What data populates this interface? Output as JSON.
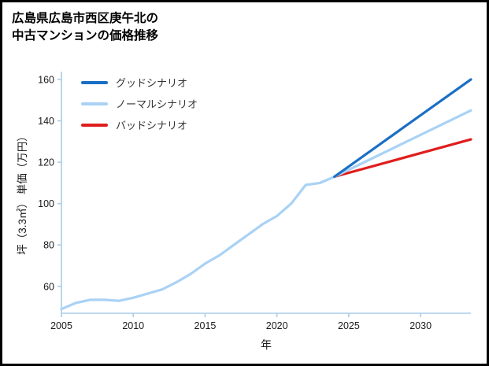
{
  "page": {
    "title_lines": [
      "広島県広島市西区庚午北の",
      "中古マンションの価格推移"
    ]
  },
  "chart_data": {
    "type": "line",
    "title": "広島県広島市西区庚午北の中古マンションの価格推移",
    "xlabel": "年",
    "ylabel": "坪（3.3㎡） 単価（万円）",
    "xlim": [
      2005,
      2033.5
    ],
    "ylim": [
      47,
      163
    ],
    "xticks": [
      2005,
      2010,
      2015,
      2020,
      2025,
      2030
    ],
    "yticks": [
      60,
      80,
      100,
      120,
      140,
      160
    ],
    "axis_color": "#a9cdea",
    "legend_position": "top-left-inside",
    "grid": false,
    "series": [
      {
        "name": "グッドシナリオ",
        "color": "#1a6fc4",
        "x": [
          2024,
          2033.5
        ],
        "values": [
          113,
          160
        ]
      },
      {
        "name": "ノーマルシナリオ",
        "color": "#a9d2f5",
        "x": [
          2005,
          2006,
          2007,
          2008,
          2009,
          2010,
          2011,
          2012,
          2013,
          2014,
          2015,
          2016,
          2017,
          2018,
          2019,
          2020,
          2021,
          2022,
          2023,
          2024,
          2033.5
        ],
        "values": [
          49,
          52,
          53.5,
          53.5,
          53,
          54.5,
          56.5,
          58.5,
          62,
          66,
          71,
          75,
          80,
          85,
          90,
          94,
          100,
          109,
          110,
          113,
          145
        ]
      },
      {
        "name": "バッドシナリオ",
        "color": "#e01d1d",
        "x": [
          2024,
          2033.5
        ],
        "values": [
          113,
          131
        ]
      }
    ]
  }
}
